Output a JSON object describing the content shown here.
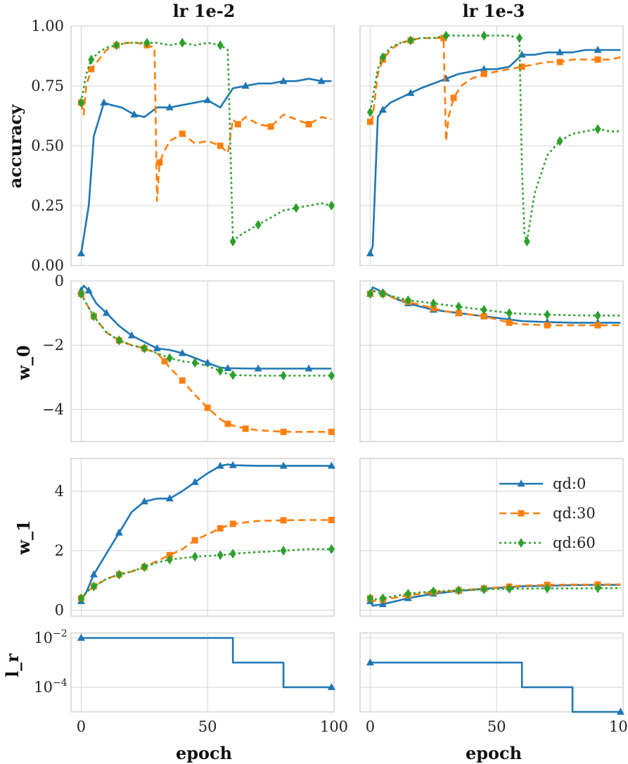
{
  "figure": {
    "columns": [
      {
        "title": "lr 1e-2"
      },
      {
        "title": "lr 1e-3"
      }
    ],
    "xlabel": "epoch",
    "xticks": [
      "0",
      "50",
      "100"
    ],
    "colors": {
      "qd0": "#1f77b4",
      "qd30": "#ff7f0e",
      "qd60": "#2ca02c"
    }
  },
  "chart_data": [
    {
      "type": "line",
      "row": "accuracy",
      "column": "lr 1e-2",
      "ylabel": "accuracy",
      "ylim": [
        0,
        1
      ],
      "xlim": [
        -4,
        100
      ],
      "yticks": [
        "0.00",
        "0.25",
        "0.50",
        "0.75",
        "1.00"
      ],
      "ytick_values": [
        0,
        0.25,
        0.5,
        0.75,
        1.0
      ],
      "series": [
        {
          "name": "qd:0",
          "x": [
            0,
            3,
            5,
            9,
            12,
            16,
            21,
            25,
            30,
            35,
            40,
            45,
            50,
            55,
            60,
            65,
            70,
            75,
            80,
            85,
            90,
            95,
            99
          ],
          "y": [
            0.05,
            0.25,
            0.54,
            0.68,
            0.67,
            0.66,
            0.63,
            0.62,
            0.66,
            0.66,
            0.67,
            0.68,
            0.69,
            0.66,
            0.74,
            0.75,
            0.76,
            0.76,
            0.77,
            0.77,
            0.78,
            0.77,
            0.77
          ]
        },
        {
          "name": "qd:30",
          "x": [
            0,
            1,
            2,
            4,
            7,
            10,
            14,
            18,
            22,
            26,
            29,
            30,
            31,
            33,
            35,
            40,
            45,
            50,
            55,
            58,
            60,
            62,
            65,
            70,
            75,
            80,
            85,
            90,
            95,
            99
          ],
          "y": [
            0.68,
            0.63,
            0.75,
            0.82,
            0.86,
            0.9,
            0.92,
            0.93,
            0.93,
            0.92,
            0.91,
            0.27,
            0.43,
            0.48,
            0.52,
            0.55,
            0.51,
            0.52,
            0.5,
            0.47,
            0.61,
            0.59,
            0.62,
            0.59,
            0.58,
            0.63,
            0.61,
            0.59,
            0.62,
            0.61
          ]
        },
        {
          "name": "qd:60",
          "x": [
            0,
            1,
            2,
            4,
            7,
            10,
            14,
            18,
            22,
            26,
            30,
            35,
            40,
            45,
            50,
            55,
            58,
            59,
            60,
            62,
            65,
            70,
            75,
            80,
            85,
            90,
            95,
            99
          ],
          "y": [
            0.68,
            0.74,
            0.8,
            0.86,
            0.89,
            0.91,
            0.92,
            0.93,
            0.93,
            0.93,
            0.93,
            0.92,
            0.93,
            0.92,
            0.93,
            0.92,
            0.9,
            0.5,
            0.1,
            0.12,
            0.14,
            0.17,
            0.2,
            0.23,
            0.24,
            0.25,
            0.26,
            0.25
          ]
        }
      ]
    },
    {
      "type": "line",
      "row": "accuracy",
      "column": "lr 1e-3",
      "ylabel": "",
      "ylim": [
        0,
        1
      ],
      "xlim": [
        -4,
        100
      ],
      "series": [
        {
          "name": "qd:0",
          "x": [
            0,
            1,
            3,
            5,
            8,
            12,
            16,
            20,
            25,
            30,
            35,
            40,
            45,
            50,
            55,
            60,
            65,
            70,
            75,
            80,
            85,
            90,
            95,
            99
          ],
          "y": [
            0.05,
            0.08,
            0.62,
            0.65,
            0.68,
            0.7,
            0.72,
            0.74,
            0.76,
            0.78,
            0.8,
            0.81,
            0.82,
            0.82,
            0.83,
            0.88,
            0.88,
            0.89,
            0.89,
            0.89,
            0.9,
            0.9,
            0.9,
            0.9
          ]
        },
        {
          "name": "qd:30",
          "x": [
            0,
            1,
            3,
            5,
            8,
            12,
            16,
            20,
            25,
            29,
            30,
            31,
            33,
            36,
            40,
            45,
            50,
            55,
            60,
            65,
            70,
            75,
            80,
            85,
            90,
            95,
            99
          ],
          "y": [
            0.6,
            0.62,
            0.8,
            0.86,
            0.9,
            0.93,
            0.94,
            0.95,
            0.95,
            0.95,
            0.52,
            0.62,
            0.7,
            0.75,
            0.78,
            0.8,
            0.81,
            0.82,
            0.83,
            0.84,
            0.85,
            0.85,
            0.86,
            0.86,
            0.86,
            0.86,
            0.87
          ]
        },
        {
          "name": "qd:60",
          "x": [
            0,
            1,
            3,
            5,
            8,
            12,
            16,
            20,
            25,
            30,
            35,
            40,
            45,
            50,
            55,
            59,
            60,
            61,
            62,
            65,
            70,
            75,
            80,
            85,
            90,
            95,
            99
          ],
          "y": [
            0.64,
            0.7,
            0.82,
            0.87,
            0.91,
            0.93,
            0.94,
            0.95,
            0.95,
            0.96,
            0.96,
            0.96,
            0.96,
            0.96,
            0.96,
            0.95,
            0.4,
            0.13,
            0.1,
            0.3,
            0.46,
            0.52,
            0.55,
            0.56,
            0.57,
            0.56,
            0.56
          ]
        }
      ]
    },
    {
      "type": "line",
      "row": "w_0",
      "column": "lr 1e-2",
      "ylabel": "w_0",
      "ylim": [
        -5,
        0
      ],
      "xlim": [
        -4,
        100
      ],
      "yticks": [
        "0",
        "−2",
        "−4"
      ],
      "ytick_values": [
        0,
        -2,
        -4
      ],
      "series": [
        {
          "name": "qd:0",
          "x": [
            0,
            1,
            3,
            6,
            10,
            15,
            20,
            25,
            30,
            35,
            40,
            45,
            50,
            55,
            58,
            60,
            70,
            80,
            90,
            99
          ],
          "y": [
            -0.3,
            -0.15,
            -0.3,
            -0.7,
            -1.0,
            -1.4,
            -1.7,
            -1.9,
            -2.1,
            -2.15,
            -2.25,
            -2.4,
            -2.55,
            -2.7,
            -2.72,
            -2.72,
            -2.73,
            -2.73,
            -2.73,
            -2.73
          ]
        },
        {
          "name": "qd:30",
          "x": [
            0,
            2,
            5,
            10,
            15,
            20,
            25,
            30,
            33,
            35,
            40,
            45,
            50,
            55,
            58,
            60,
            65,
            70,
            80,
            90,
            99
          ],
          "y": [
            -0.4,
            -0.7,
            -1.1,
            -1.6,
            -1.85,
            -2.0,
            -2.1,
            -2.25,
            -2.5,
            -2.7,
            -3.1,
            -3.55,
            -3.95,
            -4.3,
            -4.45,
            -4.5,
            -4.6,
            -4.65,
            -4.7,
            -4.7,
            -4.7
          ]
        },
        {
          "name": "qd:60",
          "x": [
            0,
            2,
            5,
            10,
            15,
            20,
            25,
            30,
            35,
            40,
            45,
            50,
            55,
            58,
            60,
            70,
            80,
            90,
            99
          ],
          "y": [
            -0.4,
            -0.7,
            -1.1,
            -1.6,
            -1.85,
            -2.0,
            -2.1,
            -2.25,
            -2.4,
            -2.5,
            -2.55,
            -2.65,
            -2.8,
            -2.9,
            -2.93,
            -2.95,
            -2.95,
            -2.95,
            -2.95
          ]
        }
      ]
    },
    {
      "type": "line",
      "row": "w_0",
      "column": "lr 1e-3",
      "ylabel": "",
      "ylim": [
        -5,
        0
      ],
      "xlim": [
        -4,
        100
      ],
      "series": [
        {
          "name": "qd:0",
          "x": [
            0,
            1,
            5,
            10,
            15,
            20,
            25,
            30,
            35,
            40,
            45,
            50,
            55,
            60,
            70,
            80,
            90,
            99
          ],
          "y": [
            -0.4,
            -0.2,
            -0.35,
            -0.55,
            -0.7,
            -0.8,
            -0.9,
            -0.95,
            -1.0,
            -1.05,
            -1.1,
            -1.15,
            -1.2,
            -1.25,
            -1.28,
            -1.3,
            -1.3,
            -1.3
          ]
        },
        {
          "name": "qd:30",
          "x": [
            0,
            1,
            5,
            10,
            15,
            20,
            25,
            30,
            35,
            40,
            45,
            50,
            55,
            60,
            70,
            80,
            90,
            99
          ],
          "y": [
            -0.4,
            -0.3,
            -0.4,
            -0.55,
            -0.65,
            -0.75,
            -0.85,
            -0.95,
            -1.0,
            -1.05,
            -1.1,
            -1.2,
            -1.3,
            -1.35,
            -1.38,
            -1.38,
            -1.38,
            -1.38
          ]
        },
        {
          "name": "qd:60",
          "x": [
            0,
            1,
            5,
            10,
            15,
            20,
            25,
            30,
            35,
            40,
            45,
            50,
            55,
            60,
            70,
            80,
            90,
            99
          ],
          "y": [
            -0.4,
            -0.3,
            -0.4,
            -0.5,
            -0.6,
            -0.65,
            -0.7,
            -0.75,
            -0.8,
            -0.85,
            -0.9,
            -0.95,
            -1.0,
            -1.02,
            -1.05,
            -1.07,
            -1.08,
            -1.08
          ]
        }
      ]
    },
    {
      "type": "line",
      "row": "w_1",
      "column": "lr 1e-2",
      "ylabel": "w_1",
      "ylim": [
        -0.2,
        5.1
      ],
      "xlim": [
        -4,
        100
      ],
      "yticks": [
        "0",
        "2",
        "4"
      ],
      "ytick_values": [
        0,
        2,
        4
      ],
      "series": [
        {
          "name": "qd:0",
          "x": [
            0,
            2,
            5,
            10,
            15,
            20,
            25,
            30,
            35,
            40,
            45,
            50,
            55,
            58,
            60,
            70,
            80,
            90,
            99
          ],
          "y": [
            0.3,
            0.6,
            1.2,
            1.9,
            2.6,
            3.3,
            3.65,
            3.75,
            3.75,
            4.0,
            4.3,
            4.6,
            4.85,
            4.9,
            4.87,
            4.85,
            4.85,
            4.85,
            4.85
          ]
        },
        {
          "name": "qd:30",
          "x": [
            0,
            2,
            5,
            10,
            15,
            20,
            25,
            30,
            35,
            40,
            45,
            50,
            55,
            58,
            60,
            70,
            80,
            90,
            99
          ],
          "y": [
            0.4,
            0.6,
            0.8,
            1.05,
            1.2,
            1.3,
            1.45,
            1.65,
            1.85,
            2.05,
            2.35,
            2.55,
            2.75,
            2.85,
            2.9,
            3.0,
            3.02,
            3.03,
            3.03
          ]
        },
        {
          "name": "qd:60",
          "x": [
            0,
            2,
            5,
            10,
            15,
            20,
            25,
            30,
            35,
            40,
            45,
            50,
            55,
            58,
            60,
            70,
            80,
            90,
            99
          ],
          "y": [
            0.4,
            0.6,
            0.8,
            1.05,
            1.2,
            1.3,
            1.45,
            1.6,
            1.7,
            1.75,
            1.8,
            1.82,
            1.85,
            1.87,
            1.9,
            1.95,
            2.0,
            2.05,
            2.05
          ]
        }
      ]
    },
    {
      "type": "line",
      "row": "w_1",
      "column": "lr 1e-3",
      "ylabel": "",
      "ylim": [
        -0.2,
        5.1
      ],
      "xlim": [
        -4,
        100
      ],
      "series": [
        {
          "name": "qd:0",
          "x": [
            0,
            1,
            5,
            10,
            15,
            20,
            25,
            30,
            35,
            40,
            45,
            50,
            55,
            60,
            70,
            80,
            90,
            99
          ],
          "y": [
            0.3,
            0.15,
            0.2,
            0.3,
            0.4,
            0.48,
            0.55,
            0.6,
            0.65,
            0.68,
            0.72,
            0.75,
            0.77,
            0.8,
            0.82,
            0.84,
            0.85,
            0.85
          ]
        },
        {
          "name": "qd:30",
          "x": [
            0,
            1,
            5,
            10,
            15,
            20,
            25,
            30,
            35,
            40,
            45,
            50,
            55,
            60,
            70,
            80,
            90,
            99
          ],
          "y": [
            0.4,
            0.3,
            0.35,
            0.42,
            0.5,
            0.55,
            0.6,
            0.63,
            0.66,
            0.7,
            0.73,
            0.76,
            0.79,
            0.82,
            0.85,
            0.86,
            0.86,
            0.87
          ]
        },
        {
          "name": "qd:60",
          "x": [
            0,
            1,
            5,
            10,
            15,
            20,
            25,
            30,
            35,
            40,
            45,
            50,
            55,
            60,
            70,
            80,
            90,
            99
          ],
          "y": [
            0.4,
            0.35,
            0.4,
            0.48,
            0.55,
            0.6,
            0.63,
            0.65,
            0.67,
            0.69,
            0.7,
            0.71,
            0.72,
            0.72,
            0.73,
            0.73,
            0.74,
            0.74
          ]
        }
      ]
    },
    {
      "type": "line",
      "row": "l_r",
      "column": "lr 1e-2",
      "ylabel": "l_r",
      "yscale": "log",
      "ylim_log10": [
        -5,
        -1.8
      ],
      "xlim": [
        -4,
        100
      ],
      "yticks": [
        "10",
        "10"
      ],
      "ytick_exponents": [
        "−2",
        "−4"
      ],
      "ytick_values": [
        -2,
        -4
      ],
      "series": [
        {
          "name": "qd:0",
          "x": [
            0,
            60,
            60,
            80,
            80,
            99
          ],
          "y_log10": [
            -2,
            -2,
            -3,
            -3,
            -4,
            -4
          ]
        }
      ]
    },
    {
      "type": "line",
      "row": "l_r",
      "column": "lr 1e-3",
      "ylabel": "",
      "yscale": "log",
      "ylim_log10": [
        -5,
        -1.8
      ],
      "xlim": [
        -4,
        100
      ],
      "series": [
        {
          "name": "qd:0",
          "x": [
            0,
            60,
            60,
            80,
            80,
            99
          ],
          "y_log10": [
            -3,
            -3,
            -4,
            -4,
            -5,
            -5
          ]
        }
      ]
    }
  ],
  "legend": {
    "entries": [
      {
        "label": "qd:0",
        "key": "qd0"
      },
      {
        "label": "qd:30",
        "key": "qd30"
      },
      {
        "label": "qd:60",
        "key": "qd60"
      }
    ]
  }
}
